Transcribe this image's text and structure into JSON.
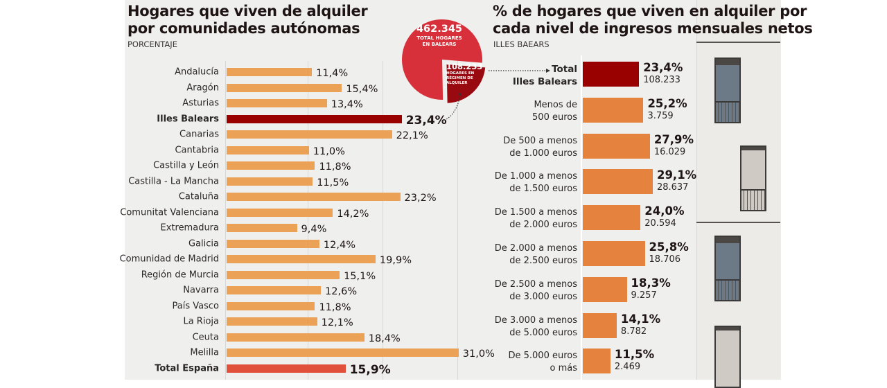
{
  "left_chart": {
    "title_line1": "Hogares que viven de alquiler",
    "title_line2": "por comunidades autónomas",
    "subtitle": "PORCENTAJE"
  },
  "right_chart": {
    "title_line1": "% de hogares que viven en alquiler por",
    "title_line2": "cada nivel de ingresos mensuales netos",
    "subtitle": "ILLES BAEARS"
  },
  "pie": {
    "total_value": "462.345",
    "total_label_line1": "TOTAL HOGARES",
    "total_label_line2": "EN BALEARS",
    "slice_value": "108.233",
    "slice_label_line1": "HOGARES EN",
    "slice_label_line2": "RÉGIMEN DE",
    "slice_label_line3": "ALQUILER"
  },
  "colors": {
    "bar_default": "#eba256",
    "bar_highlight": "#990000",
    "bar_total_spain": "#e0503a",
    "bar_income": "#e5833e",
    "pie_main": "#d8303a",
    "pie_slice": "#990a10"
  },
  "chart_data": [
    {
      "type": "bar",
      "orientation": "horizontal",
      "title": "Hogares que viven de alquiler por comunidades autónomas",
      "subtitle": "PORCENTAJE",
      "xlabel": "",
      "ylabel": "",
      "xlim": [
        0,
        31
      ],
      "grid": true,
      "categories": [
        "Andalucía",
        "Aragón",
        "Asturias",
        "Illes Balears",
        "Canarias",
        "Cantabria",
        "Castilla y León",
        "Castilla - La Mancha",
        "Cataluña",
        "Comunitat Valenciana",
        "Extremadura",
        "Galicia",
        "Comunidad de Madrid",
        "Región de Murcia",
        "Navarra",
        "País Vasco",
        "La Rioja",
        "Ceuta",
        "Melilla",
        "Total España"
      ],
      "values": [
        11.4,
        15.4,
        13.4,
        23.4,
        22.1,
        11.0,
        11.8,
        11.5,
        23.2,
        14.2,
        9.4,
        12.4,
        19.9,
        15.1,
        12.6,
        11.8,
        12.1,
        18.4,
        31.0,
        15.9
      ],
      "value_labels": [
        "11,4%",
        "15,4%",
        "13,4%",
        "23,4%",
        "22,1%",
        "11,0%",
        "11,8%",
        "11,5%",
        "23,2%",
        "14,2%",
        "9,4%",
        "12,4%",
        "19,9%",
        "15,1%",
        "12,6%",
        "11,8%",
        "12,1%",
        "18,4%",
        "31,0%",
        "15,9%"
      ],
      "highlight": [
        "Illes Balears",
        "Total España"
      ]
    },
    {
      "type": "bar",
      "orientation": "horizontal",
      "title": "% de hogares que viven en alquiler por cada nivel de ingresos mensuales netos",
      "subtitle": "ILLES BAEARS",
      "xlabel": "",
      "ylabel": "",
      "xlim": [
        0,
        31
      ],
      "grid": false,
      "categories": [
        "Total\nIlles Balears",
        "Menos de\n500 euros",
        "De 500 a menos\nde 1.000 euros",
        "De 1.000 a menos\nde 1.500 euros",
        "De 1.500 a menos\nde 2.000 euros",
        "De 2.000 a menos\nde 2.500 euros",
        "De 2.500 a menos\nde 3.000 euros",
        "De 3.000 a menos\nde 5.000 euros",
        "De 5.000 euros\no más"
      ],
      "values": [
        23.4,
        25.2,
        27.9,
        29.1,
        24.0,
        25.8,
        18.3,
        14.1,
        11.5
      ],
      "value_labels": [
        "23,4%",
        "25,2%",
        "27,9%",
        "29,1%",
        "24,0%",
        "25,8%",
        "18,3%",
        "14,1%",
        "11,5%"
      ],
      "households": [
        "108.233",
        "3.759",
        "16.029",
        "28.637",
        "20.594",
        "18.706",
        "9.257",
        "8.782",
        "2.469"
      ],
      "highlight": [
        "Total\nIlles Balears"
      ]
    },
    {
      "type": "pie",
      "title": "",
      "categories": [
        "Total hogares en Balears",
        "Hogares en régimen de alquiler"
      ],
      "values": [
        462345,
        108233
      ]
    }
  ]
}
